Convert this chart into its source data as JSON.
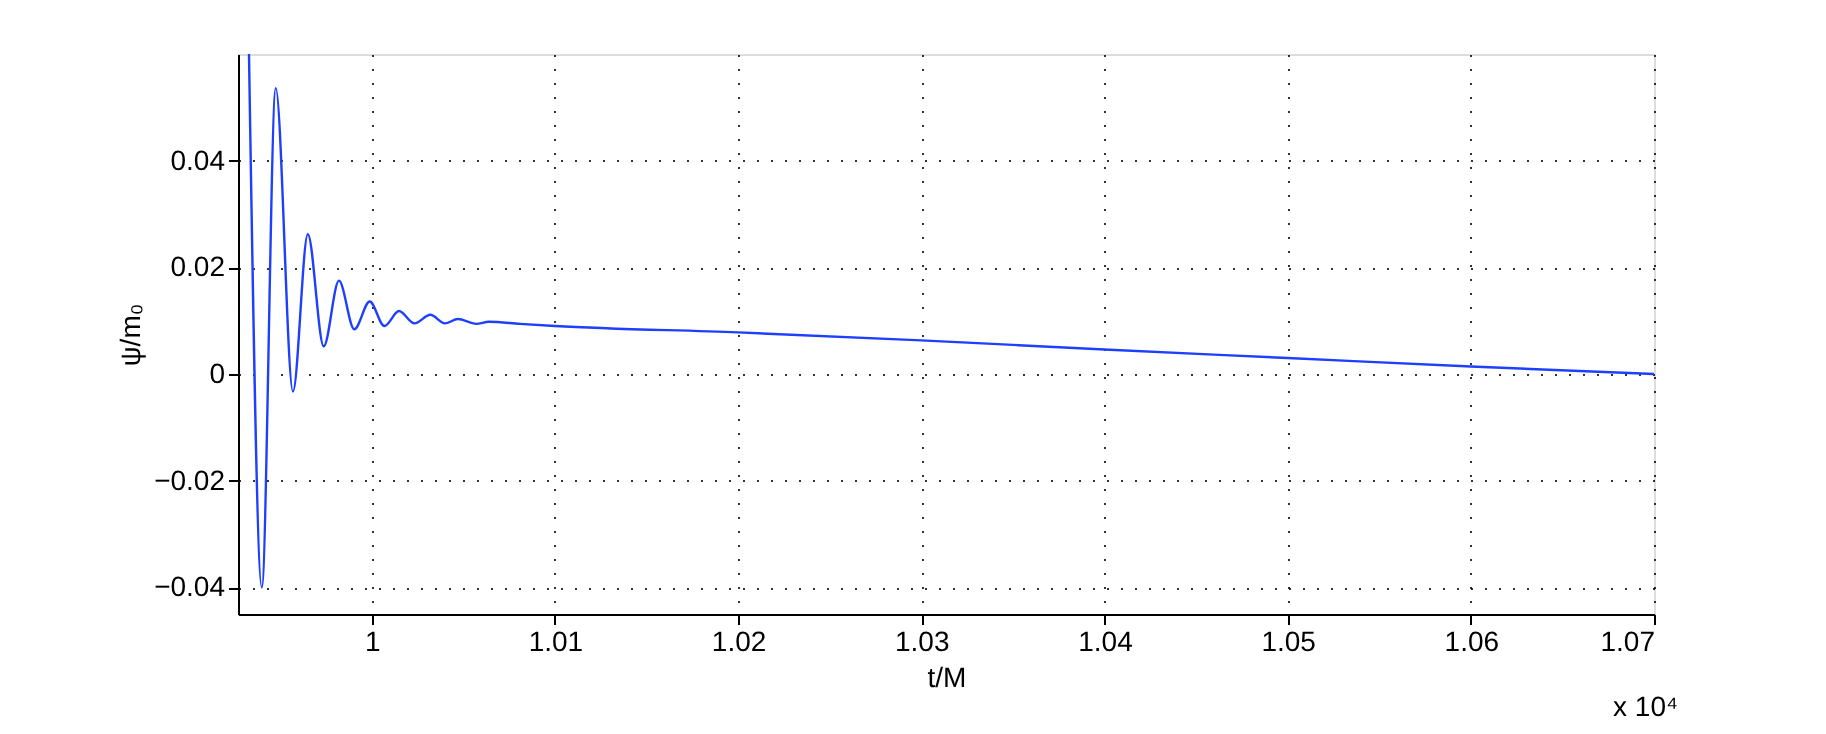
{
  "chart_data": {
    "type": "line",
    "xlabel": "t/M",
    "ylabel": "ψ/m₀",
    "annotations": [
      "x 10⁴"
    ],
    "x": [
      0.9933,
      0.994,
      0.99476,
      0.9957,
      0.99651,
      0.99738,
      0.99821,
      0.99905,
      0.99989,
      1.00069,
      1.00149,
      1.00233,
      1.0032,
      1.004,
      1.0047,
      1.0057,
      1.0064,
      1.0081,
      1.01,
      1.02,
      1.03,
      1.04,
      1.05,
      1.06,
      1.07
    ],
    "series": [
      {
        "color": "#1f3fff",
        "values": [
          0.06,
          -0.04,
          0.0536,
          -0.0033,
          0.0262,
          0.0052,
          0.0175,
          0.0084,
          0.0136,
          0.009,
          0.0118,
          0.0095,
          0.0111,
          0.0095,
          0.0103,
          0.0094,
          0.0098,
          0.0094,
          0.009,
          0.0078,
          0.0063,
          0.0046,
          0.003,
          0.0014,
          0.0
        ]
      }
    ],
    "xlim": [
      0.9927,
      1.07
    ],
    "xticks": [
      1,
      1.01,
      1.02,
      1.03,
      1.04,
      1.05,
      1.06,
      1.07
    ],
    "ylim": [
      -0.045,
      0.06
    ],
    "yticks": [
      -0.04,
      -0.02,
      0,
      0.02,
      0.04
    ],
    "grid": true,
    "marker": "none",
    "line_style": "solid"
  }
}
